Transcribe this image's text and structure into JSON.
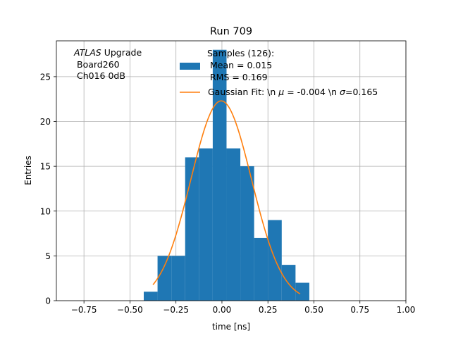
{
  "chart_data": {
    "type": "bar",
    "title": "Run 709",
    "xlabel": "time [ns]",
    "ylabel": "Entries",
    "xlim": [
      -0.9,
      1.0
    ],
    "ylim": [
      0,
      29
    ],
    "grid": true,
    "x_ticks": [
      -0.75,
      -0.5,
      -0.25,
      0.0,
      0.25,
      0.5,
      0.75,
      1.0
    ],
    "x_tick_labels": [
      "−0.75",
      "−0.50",
      "−0.25",
      "0.00",
      "0.25",
      "0.50",
      "0.75",
      "1.00"
    ],
    "y_ticks": [
      0,
      5,
      10,
      15,
      20,
      25
    ],
    "y_tick_labels": [
      "0",
      "5",
      "10",
      "15",
      "20",
      "25"
    ],
    "bin_edges": [
      -0.425,
      -0.35,
      -0.275,
      -0.2,
      -0.125,
      -0.05,
      0.025,
      0.1,
      0.175,
      0.25,
      0.325,
      0.4,
      0.475
    ],
    "series": [
      {
        "name": "Samples (126):\n Mean = 0.015\n RMS = 0.169",
        "kind": "histogram",
        "color": "#1f77b4",
        "values": [
          1,
          5,
          5,
          16,
          17,
          28,
          17,
          15,
          7,
          9,
          4,
          2
        ]
      },
      {
        "name": "Gaussian Fit: \\n $\\mu$ = -0.004 \\n $\\sigma$=0.165",
        "kind": "line",
        "color": "#ff7f0e",
        "amplitude": 22.3,
        "mu": -0.004,
        "sigma": 0.165,
        "x_range": [
          -0.375,
          0.425
        ]
      }
    ],
    "legend": {
      "placement": "top-center",
      "entries": [
        {
          "lines": [
            "Samples (126):",
            " Mean = 0.015",
            " RMS = 0.169"
          ]
        },
        {
          "pre": "Gaussian Fit: \\n ",
          "mu_sym": "μ",
          "mid": " = -0.004 \\n ",
          "sigma_sym": "σ",
          "post": "=0.165"
        }
      ]
    },
    "annotation": {
      "atlas": "ATLAS",
      "upgrade": " Upgrade",
      "line2": "Board260",
      "line3": "Ch016 0dB"
    }
  }
}
